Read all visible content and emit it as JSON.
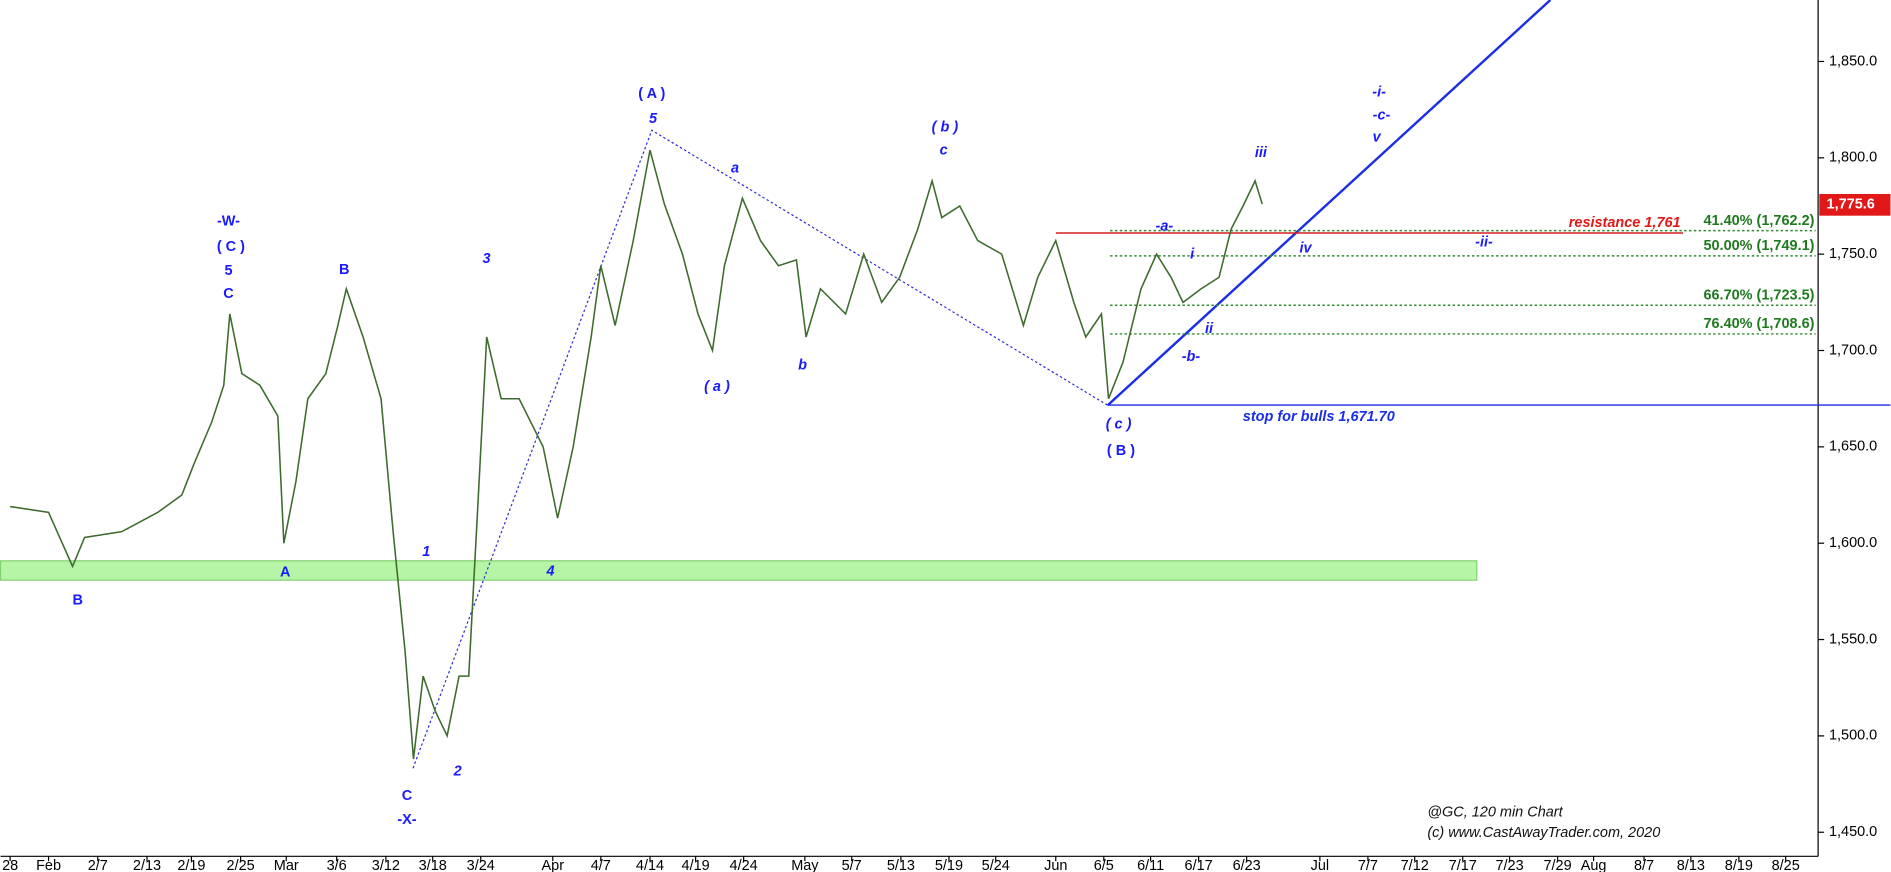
{
  "chart_data": {
    "type": "line",
    "color": "#3f6b2f",
    "x": [
      0,
      3.2,
      5.2,
      6.2,
      9.3,
      12.3,
      14.3,
      15.3,
      16.8,
      17.8,
      18.3,
      19.3,
      20.8,
      22.3,
      22.8,
      23.8,
      24.8,
      26.3,
      27.3,
      28.0,
      29.4,
      30.9,
      31.9,
      32.9,
      33.6,
      34.4,
      35.4,
      36.4,
      37.4,
      38.2,
      38.9,
      39.7,
      40.9,
      42.4,
      44.4,
      45.6,
      46.9,
      48.4,
      49.2,
      50.4,
      51.9,
      53.3,
      54.5,
      56.0,
      57.3,
      58.5,
      59.5,
      61.0,
      62.5,
      64.0,
      65.5,
      66.3,
      67.5,
      69.6,
      71.1,
      72.6,
      74.1,
      75.6,
      76.8,
      77.6,
      79.1,
      80.6,
      82.6,
      84.4,
      85.6,
      87.1,
      88.6,
      89.6,
      90.9,
      91.5,
      92.7,
      94.2,
      95.5,
      96.7,
      97.7,
      99.2,
      100.7,
      101.7,
      102.7,
      103.7,
      104.3
    ],
    "values": [
      1619,
      1616,
      1588,
      1603,
      1606,
      1616,
      1625,
      1641,
      1663,
      1682,
      1719,
      1688,
      1682,
      1666,
      1600,
      1632,
      1675,
      1688,
      1713,
      1732,
      1707,
      1675,
      1606,
      1544,
      1488,
      1531,
      1513,
      1500,
      1531,
      1531,
      1613,
      1707,
      1675,
      1675,
      1650,
      1613,
      1650,
      1707,
      1744,
      1713,
      1757,
      1804,
      1776,
      1750,
      1719,
      1700,
      1744,
      1779,
      1757,
      1744,
      1747,
      1707,
      1732,
      1719,
      1750,
      1725,
      1738,
      1763,
      1788,
      1769,
      1775,
      1757,
      1750,
      1713,
      1738,
      1757,
      1725,
      1707,
      1719,
      1675,
      1694,
      1732,
      1750,
      1738,
      1725,
      1732,
      1738,
      1763,
      1775,
      1788,
      1776
    ],
    "xlim": [
      -0.8,
      150.4
    ],
    "xticks": [
      {
        "value": 0,
        "label": "28"
      },
      {
        "value": 3.2,
        "label": "Feb"
      },
      {
        "value": 7.3,
        "label": "2/7"
      },
      {
        "value": 11.4,
        "label": "2/13"
      },
      {
        "value": 15.1,
        "label": "2/19"
      },
      {
        "value": 19.2,
        "label": "2/25"
      },
      {
        "value": 23.0,
        "label": "Mar"
      },
      {
        "value": 27.2,
        "label": "3/6"
      },
      {
        "value": 31.3,
        "label": "3/12"
      },
      {
        "value": 35.2,
        "label": "3/18"
      },
      {
        "value": 39.2,
        "label": "3/24"
      },
      {
        "value": 45.2,
        "label": "Apr"
      },
      {
        "value": 49.2,
        "label": "4/7"
      },
      {
        "value": 53.3,
        "label": "4/14"
      },
      {
        "value": 57.1,
        "label": "4/19"
      },
      {
        "value": 61.1,
        "label": "4/24"
      },
      {
        "value": 66.2,
        "label": "May"
      },
      {
        "value": 70.1,
        "label": "5/7"
      },
      {
        "value": 74.2,
        "label": "5/13"
      },
      {
        "value": 78.2,
        "label": "5/19"
      },
      {
        "value": 82.1,
        "label": "5/24"
      },
      {
        "value": 87.1,
        "label": "Jun"
      },
      {
        "value": 91.1,
        "label": "6/5"
      },
      {
        "value": 95.0,
        "label": "6/11"
      },
      {
        "value": 99.0,
        "label": "6/17"
      },
      {
        "value": 103.0,
        "label": "6/23"
      },
      {
        "value": 109.1,
        "label": "Jul"
      },
      {
        "value": 113.1,
        "label": "7/7"
      },
      {
        "value": 117.0,
        "label": "7/12"
      },
      {
        "value": 121.0,
        "label": "7/17"
      },
      {
        "value": 124.9,
        "label": "7/23"
      },
      {
        "value": 128.9,
        "label": "7/29"
      },
      {
        "value": 131.9,
        "label": "Aug"
      },
      {
        "value": 136.1,
        "label": "8/7"
      },
      {
        "value": 140.0,
        "label": "8/13"
      },
      {
        "value": 144.0,
        "label": "8/19"
      },
      {
        "value": 147.9,
        "label": "8/25"
      }
    ],
    "ylim": [
      1437.5,
      1881.9
    ],
    "yticks": [
      {
        "value": 1450,
        "label": "1,450.0"
      },
      {
        "value": 1500,
        "label": "1,500.0"
      },
      {
        "value": 1550,
        "label": "1,550.0"
      },
      {
        "value": 1600,
        "label": "1,600.0"
      },
      {
        "value": 1650,
        "label": "1,650.0"
      },
      {
        "value": 1700,
        "label": "1,700.0"
      },
      {
        "value": 1750,
        "label": "1,750.0"
      },
      {
        "value": 1800,
        "label": "1,800.0"
      },
      {
        "value": 1850,
        "label": "1,850.0"
      }
    ],
    "levels": [
      {
        "value": 1761,
        "label": "resistance 1,761"
      },
      {
        "value": 1762.2,
        "label": "41.40% (1,762.2)"
      },
      {
        "value": 1749.1,
        "label": "50.00% (1,749.1)"
      },
      {
        "value": 1723.5,
        "label": "66.70% (1,723.5)"
      },
      {
        "value": 1708.6,
        "label": "76.40% (1,708.6)"
      },
      {
        "value": 1671.7,
        "label": "stop for bulls 1,671.70"
      },
      {
        "value": 1775.6,
        "label": "1,775.6"
      }
    ],
    "annotations": [
      "-W-",
      "( C )",
      "5",
      "C",
      "B",
      "A",
      "B",
      "C",
      "-X-",
      "1",
      "2",
      "3",
      "4",
      "( A )",
      "5",
      "a",
      "( a )",
      "b",
      "( b )",
      "c",
      "( c )",
      "( B )",
      "-a-",
      "i",
      "ii",
      "-b-",
      "iii",
      "iv",
      "-ii-",
      "-i-",
      "-c-",
      "v"
    ],
    "footer": [
      "@GC, 120 min Chart",
      "(c) www.CastAwayTrader.com, 2020"
    ]
  }
}
